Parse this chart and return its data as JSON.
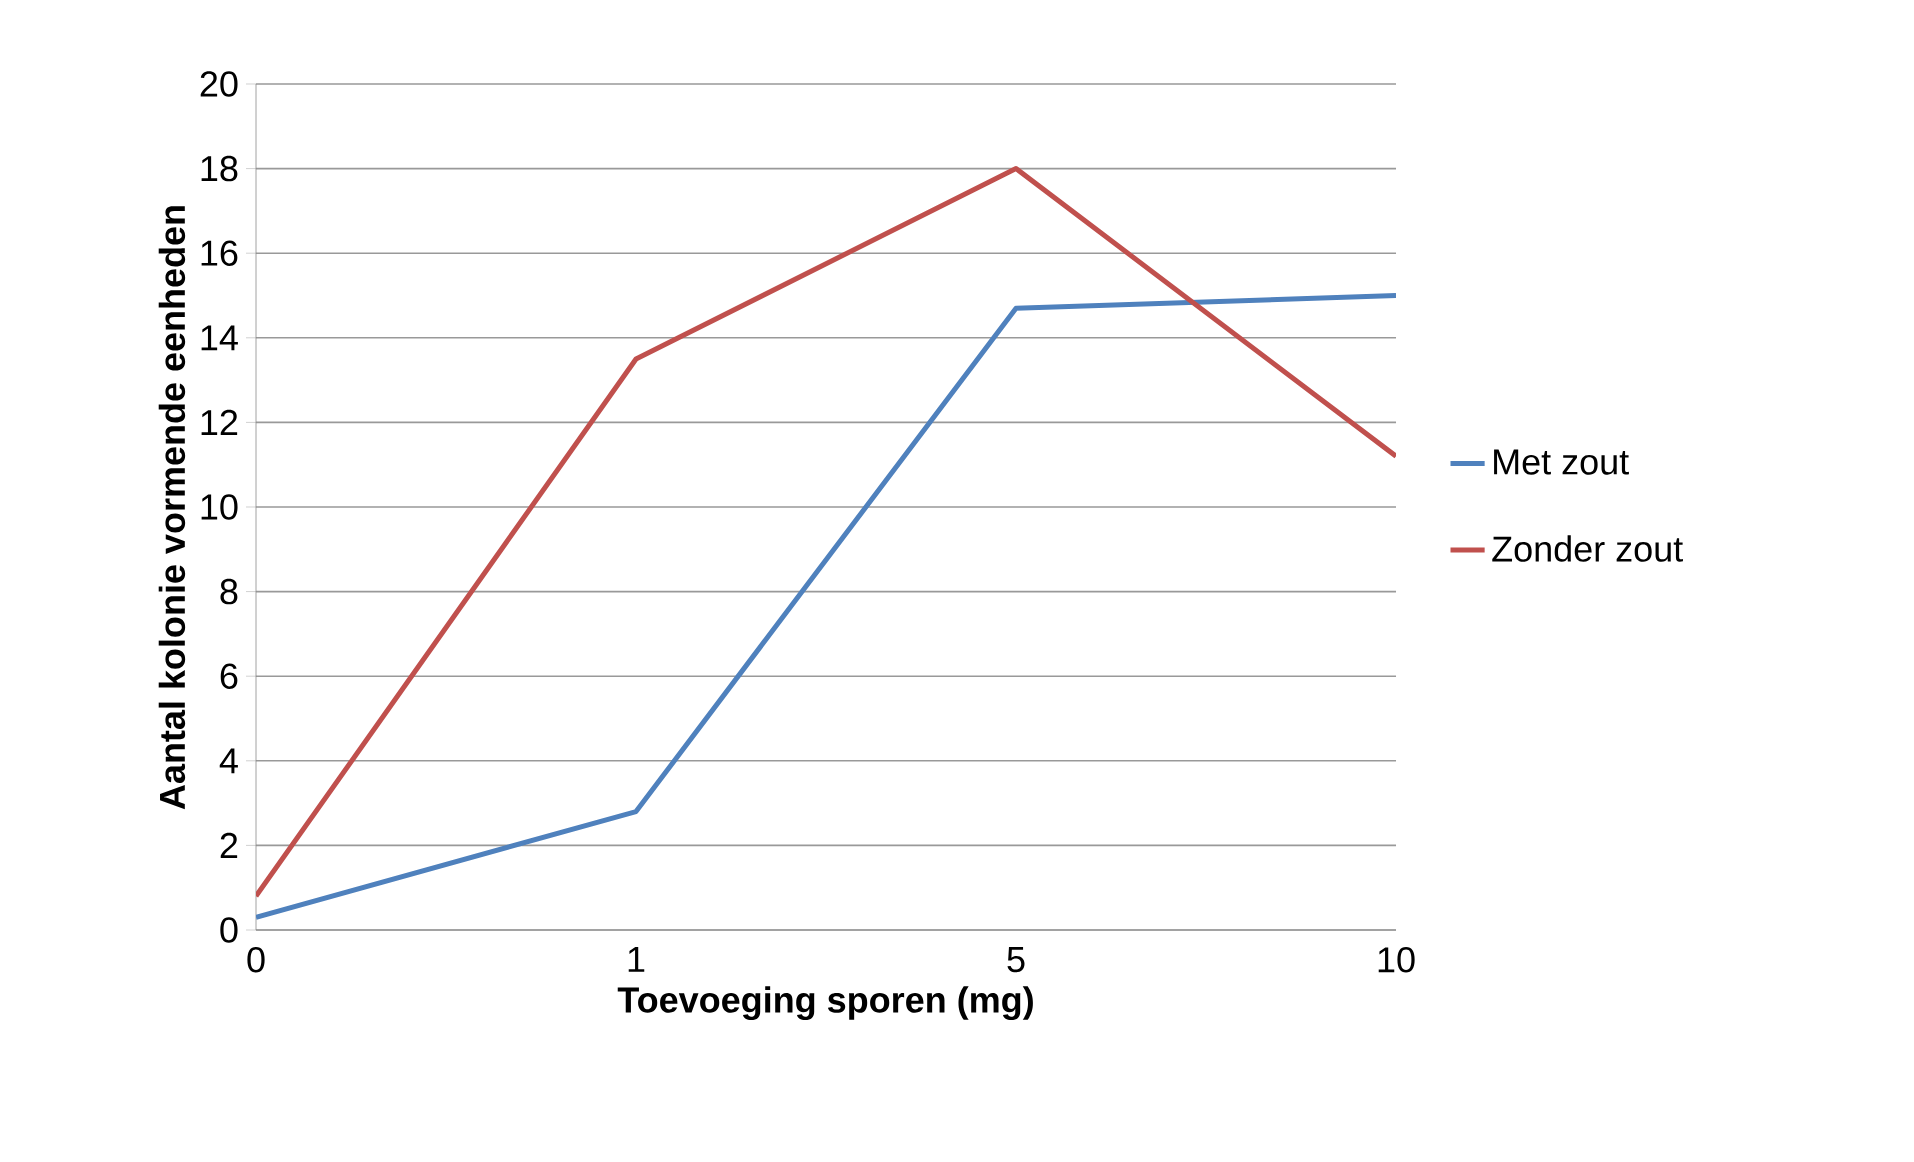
{
  "chart_data": {
    "type": "line",
    "xlabel": "Toevoeging sporen (mg)",
    "ylabel": "Aantal kolonie vormende eenheden",
    "categories": [
      "0",
      "1",
      "5",
      "10"
    ],
    "series": [
      {
        "name": "Met zout",
        "color": "#4f81bd",
        "values": [
          0.3,
          2.8,
          14.7,
          15.0
        ]
      },
      {
        "name": "Zonder zout",
        "color": "#c0504d",
        "values": [
          0.8,
          13.5,
          18.0,
          11.2
        ]
      }
    ],
    "ylim": [
      0,
      20
    ],
    "yticks": [
      0,
      2,
      4,
      6,
      8,
      10,
      12,
      14,
      16,
      18,
      20
    ],
    "grid": "y",
    "legend": "right",
    "marker": "none",
    "line_style": "solid"
  }
}
